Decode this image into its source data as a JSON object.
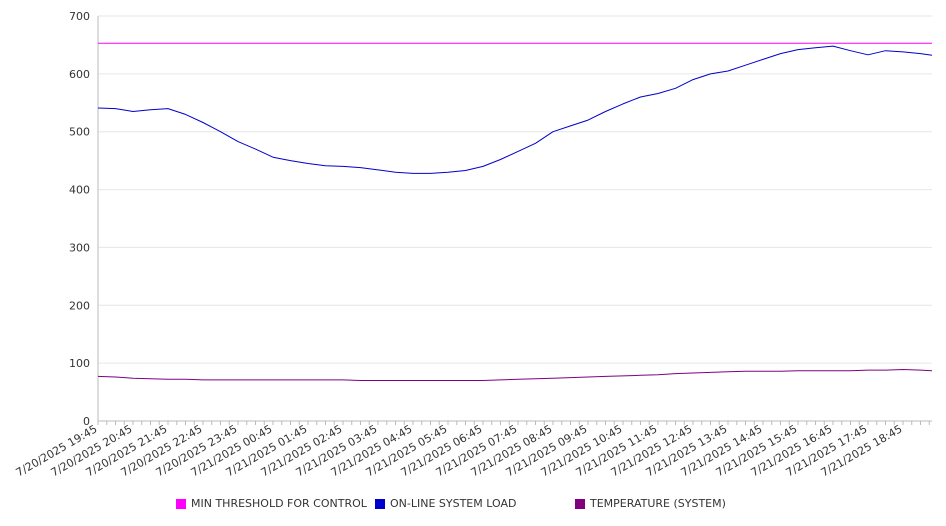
{
  "chart_data": {
    "type": "line",
    "title": "",
    "xlabel": "",
    "ylabel": "",
    "ylim": [
      0,
      700
    ],
    "yticks": [
      0,
      100,
      200,
      300,
      400,
      500,
      600,
      700
    ],
    "grid": true,
    "legend_position": "bottom",
    "xtick_labels": [
      "7/20/2025 19:45",
      "7/20/2025 20:45",
      "7/20/2025 21:45",
      "7/20/2025 22:45",
      "7/20/2025 23:45",
      "7/21/2025 00:45",
      "7/21/2025 01:45",
      "7/21/2025 02:45",
      "7/21/2025 03:45",
      "7/21/2025 04:45",
      "7/21/2025 05:45",
      "7/21/2025 06:45",
      "7/21/2025 07:45",
      "7/21/2025 08:45",
      "7/21/2025 09:45",
      "7/21/2025 10:45",
      "7/21/2025 11:45",
      "7/21/2025 12:45",
      "7/21/2025 13:45",
      "7/21/2025 14:45",
      "7/21/2025 15:45",
      "7/21/2025 16:45",
      "7/21/2025 17:45",
      "7/21/2025 18:45"
    ],
    "x_hours": [
      0,
      0.5,
      1,
      1.5,
      2,
      2.5,
      3,
      3.5,
      4,
      4.5,
      5,
      5.5,
      6,
      6.5,
      7,
      7.5,
      8,
      8.5,
      9,
      9.5,
      10,
      10.5,
      11,
      11.5,
      12,
      12.5,
      13,
      13.5,
      14,
      14.5,
      15,
      15.5,
      16,
      16.5,
      17,
      17.5,
      18,
      18.5,
      19,
      19.5,
      20,
      20.5,
      21,
      21.5,
      22,
      22.5,
      23,
      23.5,
      24
    ],
    "series": [
      {
        "name": "MIN THRESHOLD FOR CONTROL",
        "color": "#ff00ff",
        "values": [
          653,
          653,
          653,
          653,
          653,
          653,
          653,
          653,
          653,
          653,
          653,
          653,
          653,
          653,
          653,
          653,
          653,
          653,
          653,
          653,
          653,
          653,
          653,
          653,
          653,
          653,
          653,
          653,
          653,
          653,
          653,
          653,
          653,
          653,
          653,
          653,
          653,
          653,
          653,
          653,
          653,
          653,
          653,
          653,
          653,
          653,
          653,
          653,
          653
        ]
      },
      {
        "name": "ON-LINE SYSTEM LOAD",
        "color": "#0000cc",
        "values": [
          541,
          540,
          535,
          538,
          540,
          530,
          516,
          500,
          483,
          470,
          456,
          450,
          445,
          441,
          440,
          438,
          434,
          430,
          428,
          428,
          430,
          433,
          440,
          452,
          466,
          480,
          500,
          510,
          520,
          535,
          548,
          560,
          566,
          575,
          590,
          600,
          605,
          615,
          625,
          635,
          642,
          645,
          648,
          640,
          633,
          640,
          638,
          635,
          632
        ]
      },
      {
        "name": "TEMPERATURE (SYSTEM)",
        "color": "#800080",
        "values": [
          77,
          76,
          74,
          73,
          72,
          72,
          71,
          71,
          71,
          71,
          71,
          71,
          71,
          71,
          71,
          70,
          70,
          70,
          70,
          70,
          70,
          70,
          70,
          71,
          72,
          73,
          74,
          75,
          76,
          77,
          78,
          79,
          80,
          82,
          83,
          84,
          85,
          86,
          86,
          86,
          87,
          87,
          87,
          87,
          88,
          88,
          89,
          88,
          87
        ]
      }
    ]
  }
}
